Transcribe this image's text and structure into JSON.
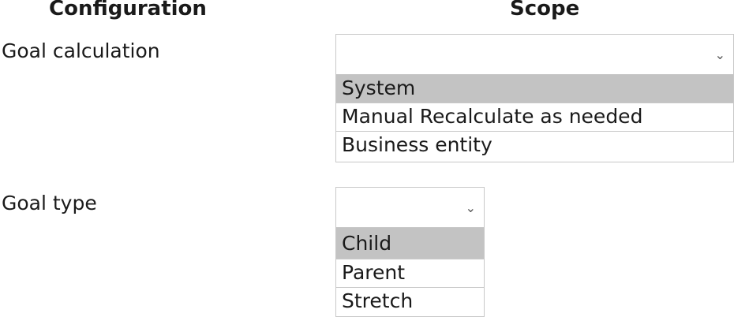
{
  "headers": {
    "configuration": "Configuration",
    "scope": "Scope"
  },
  "rows": [
    {
      "label": "Goal calculation",
      "options": [
        "System",
        "Manual Recalculate as needed",
        "Business entity"
      ],
      "highlighted": "System"
    },
    {
      "label": "Goal type",
      "options": [
        "Child",
        "Parent",
        "Stretch"
      ],
      "highlighted": "Child"
    }
  ],
  "icons": {
    "dropdown": "chevron-down-icon"
  },
  "colors": {
    "highlight": "#c3c3c3",
    "border": "#c8c8c8"
  }
}
